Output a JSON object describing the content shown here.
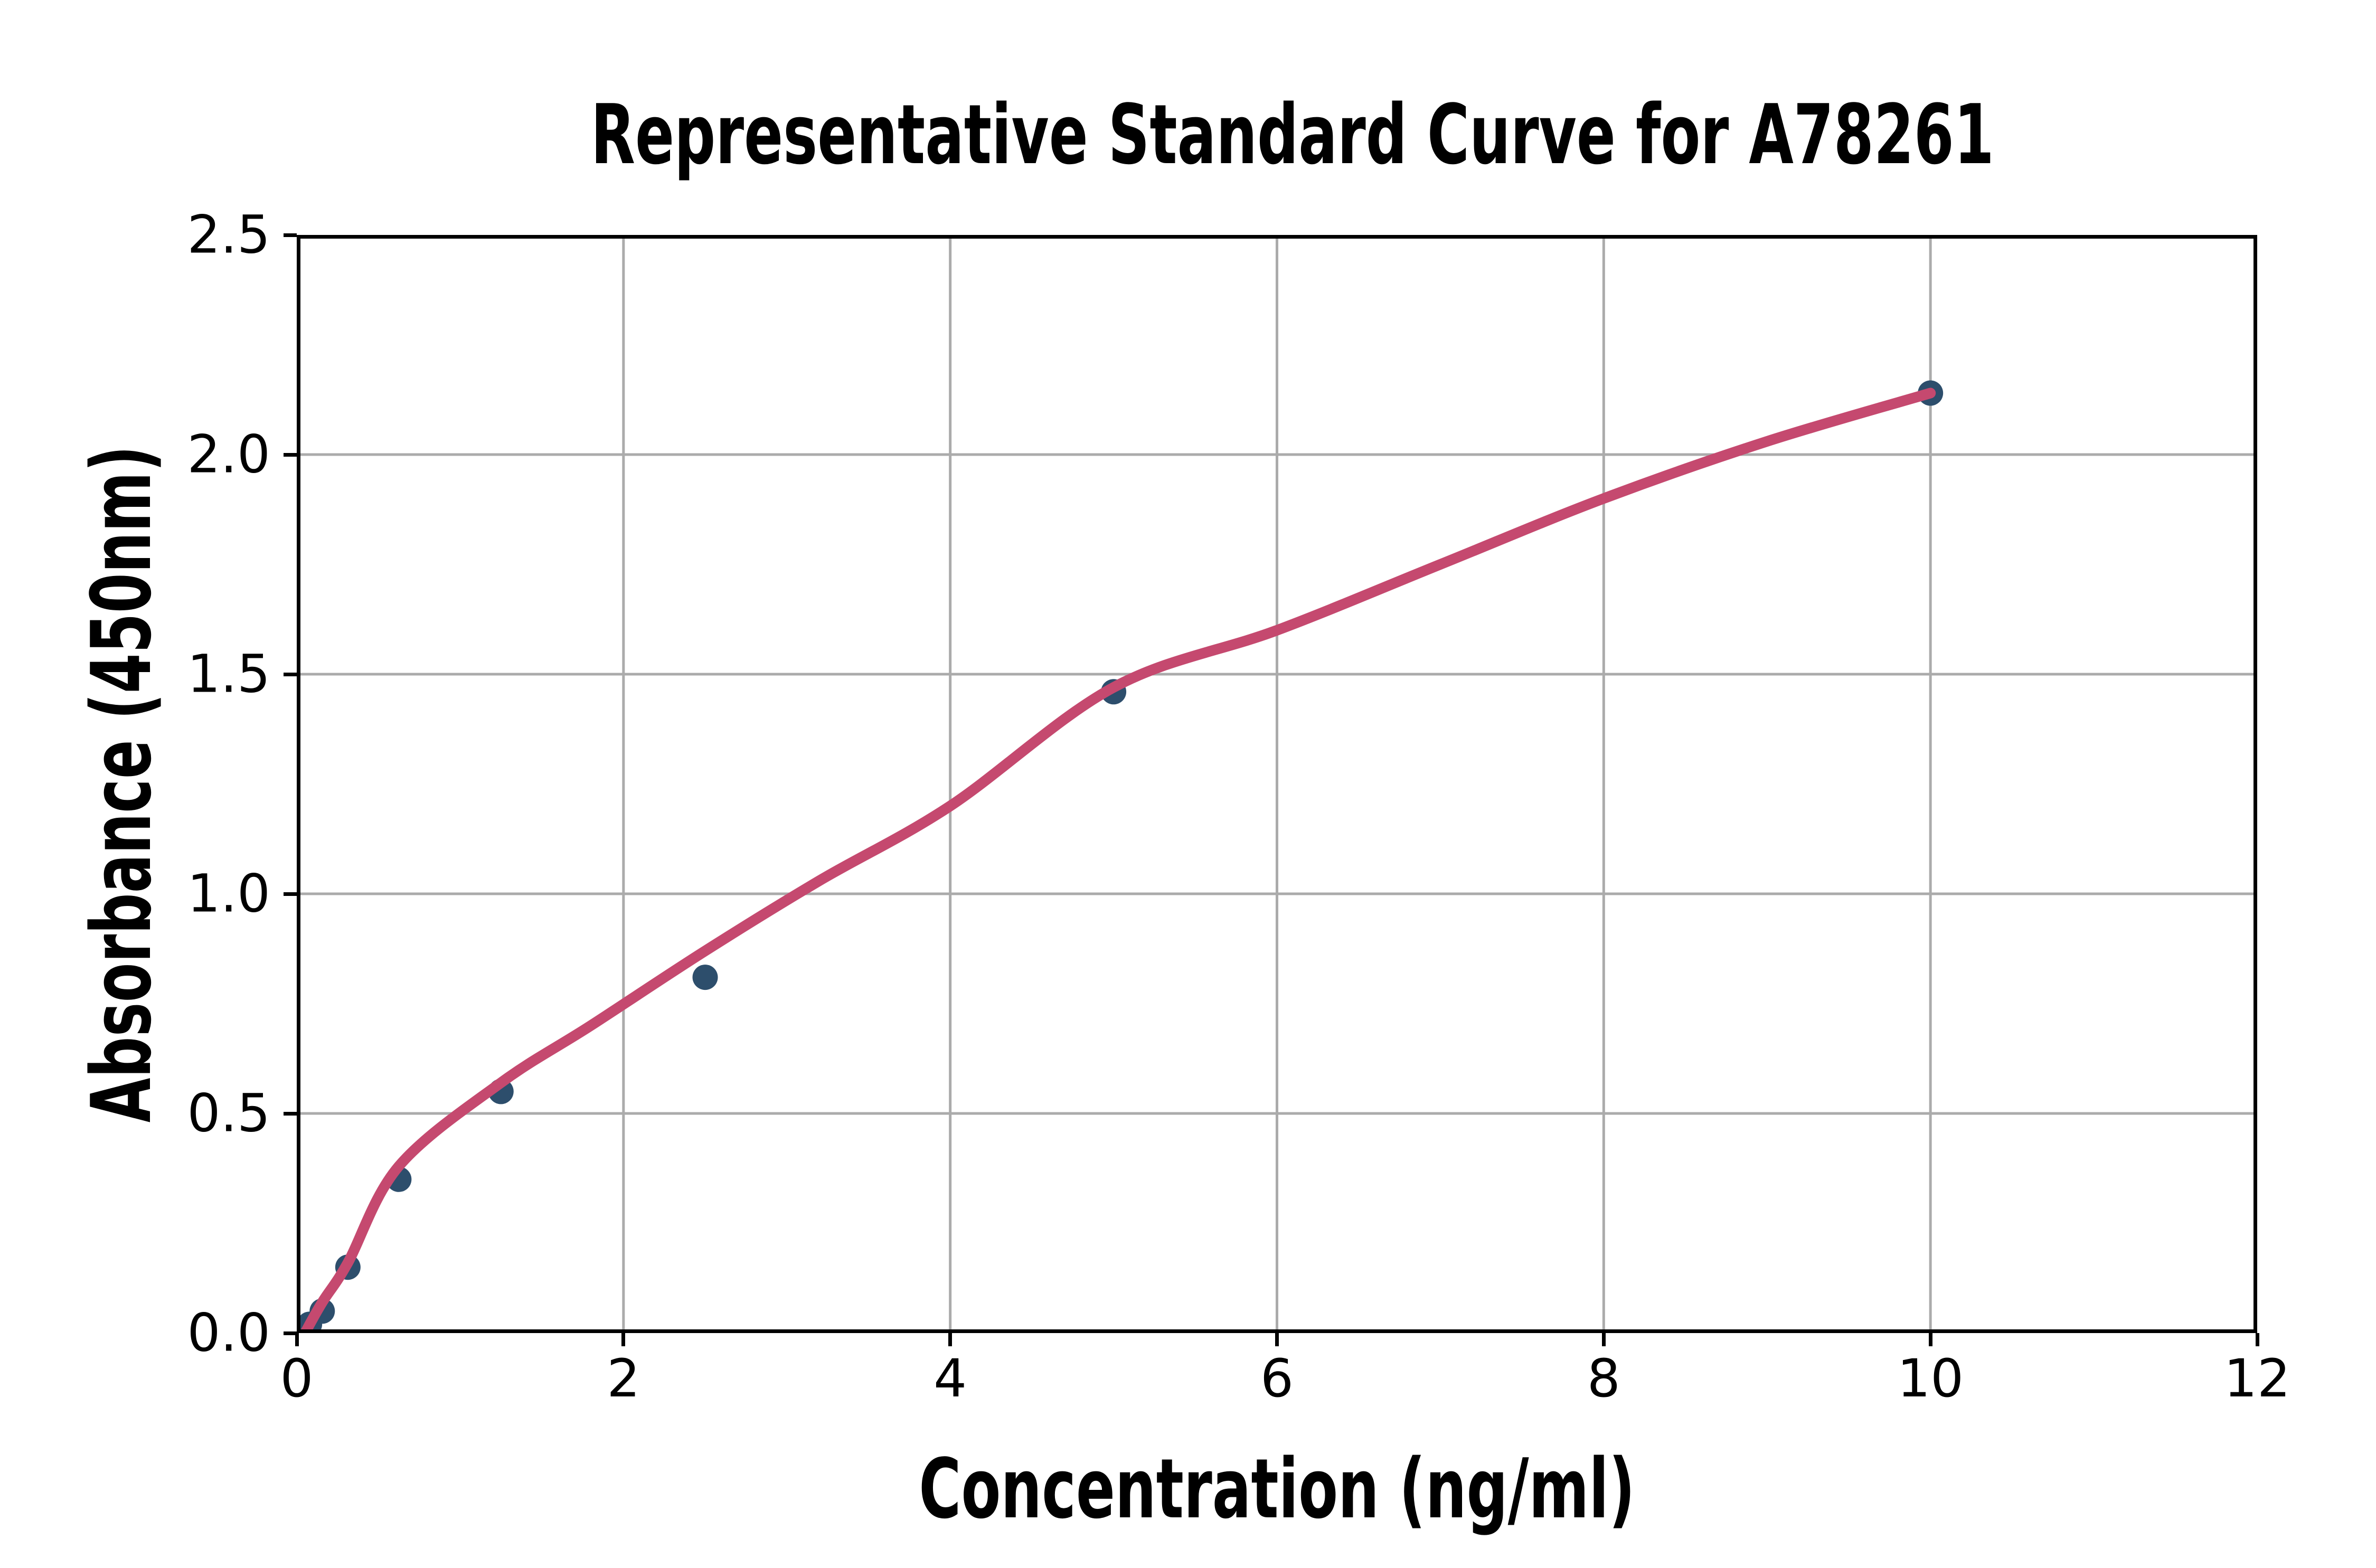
{
  "colors": {
    "background": "#ffffff",
    "grid": "#ababab",
    "axis": "#000000",
    "text": "#000000",
    "point": "#2d4e6c",
    "curve": "#c5496f"
  },
  "chart_data": {
    "type": "scatter",
    "title": "Representative Standard Curve for A78261",
    "xlabel": "Concentration (ng/ml)",
    "ylabel": "Absorbance (450nm)",
    "xlim": [
      0,
      12
    ],
    "ylim": [
      0,
      2.5
    ],
    "grid": true,
    "legend": "none",
    "x_ticks": [
      {
        "value": 0,
        "label": "0"
      },
      {
        "value": 2,
        "label": "2"
      },
      {
        "value": 4,
        "label": "4"
      },
      {
        "value": 6,
        "label": "6"
      },
      {
        "value": 8,
        "label": "8"
      },
      {
        "value": 10,
        "label": "10"
      },
      {
        "value": 12,
        "label": "12"
      }
    ],
    "y_ticks": [
      {
        "value": 0,
        "label": "0.0"
      },
      {
        "value": 0.5,
        "label": "0.5"
      },
      {
        "value": 1,
        "label": "1.0"
      },
      {
        "value": 1.5,
        "label": "1.5"
      },
      {
        "value": 2,
        "label": "2.0"
      },
      {
        "value": 2.5,
        "label": "2.5"
      }
    ],
    "series": [
      {
        "name": "standard-points",
        "type": "scatter",
        "color": "#2d4e6c",
        "points": [
          [
            0.078,
            0.02
          ],
          [
            0.156,
            0.05
          ],
          [
            0.313,
            0.15
          ],
          [
            0.625,
            0.35
          ],
          [
            1.25,
            0.55
          ],
          [
            2.5,
            0.81
          ],
          [
            5,
            1.46
          ],
          [
            10,
            2.14
          ]
        ]
      },
      {
        "name": "fitted-curve",
        "type": "line",
        "color": "#c5496f",
        "points": [
          [
            0.05,
            0.0
          ],
          [
            0.156,
            0.07
          ],
          [
            0.313,
            0.16
          ],
          [
            0.625,
            0.38
          ],
          [
            1.25,
            0.57
          ],
          [
            1.8,
            0.7
          ],
          [
            2.5,
            0.87
          ],
          [
            3.2,
            1.03
          ],
          [
            4,
            1.2
          ],
          [
            5,
            1.47
          ],
          [
            6,
            1.6
          ],
          [
            7,
            1.75
          ],
          [
            8,
            1.9
          ],
          [
            9,
            2.03
          ],
          [
            10,
            2.14
          ]
        ]
      }
    ]
  }
}
